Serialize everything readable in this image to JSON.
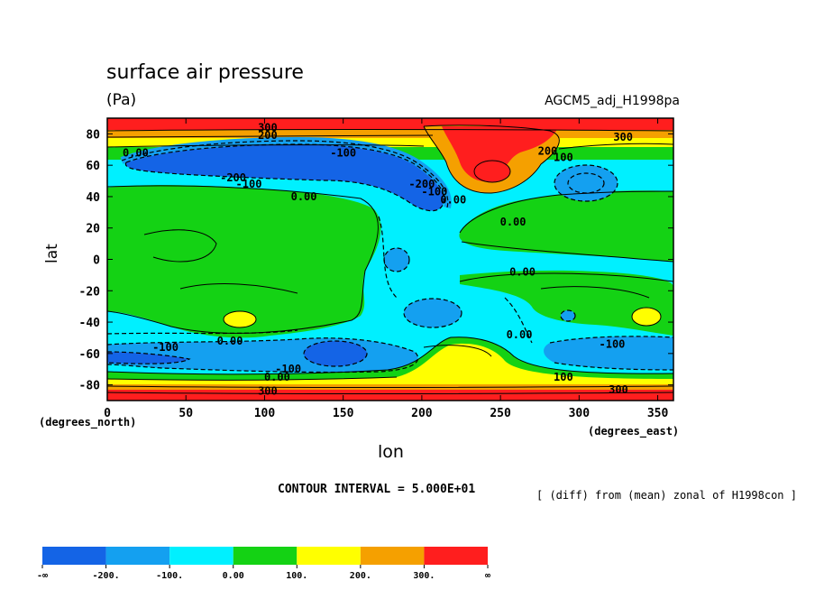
{
  "chart_data": {
    "type": "heatmap",
    "title": "surface air pressure",
    "units": "(Pa)",
    "dataset": "AGCM5_adj_H1998pa",
    "xlabel": "lon",
    "ylabel": "lat",
    "x_note": "(degrees_east)",
    "y_note": "(degrees_north)",
    "xlim": [
      0,
      360
    ],
    "ylim": [
      -90,
      90
    ],
    "x_ticks": [
      "0",
      "50",
      "100",
      "150",
      "200",
      "250",
      "300",
      "350"
    ],
    "x_tick_values": [
      0,
      50,
      100,
      150,
      200,
      250,
      300,
      350
    ],
    "y_ticks": [
      "80",
      "60",
      "40",
      "20",
      "0",
      "-20",
      "-40",
      "-60",
      "-80"
    ],
    "y_tick_values": [
      80,
      60,
      40,
      20,
      0,
      -20,
      -40,
      -60,
      -80
    ],
    "contour_interval": "CONTOUR INTERVAL = 5.000E+01",
    "note": "[ (diff) from (mean) zonal of H1998con ]",
    "colorbar": {
      "labels": [
        "-∞",
        "-200.",
        "-100.",
        "0.00",
        "100.",
        "200.",
        "300.",
        "∞"
      ],
      "colors": [
        "#1464e6",
        "#14a0f0",
        "#00f0ff",
        "#14d214",
        "#ffff00",
        "#f5a000",
        "#ff1e1e"
      ]
    },
    "contour_labels": [
      {
        "text": "0.00",
        "lon": 18,
        "lat": 68
      },
      {
        "text": "-100",
        "lon": 150,
        "lat": 68
      },
      {
        "text": "-200",
        "lon": 80,
        "lat": 52
      },
      {
        "text": "-100",
        "lon": 90,
        "lat": 48
      },
      {
        "text": "0.00",
        "lon": 125,
        "lat": 40
      },
      {
        "text": "-200",
        "lon": 200,
        "lat": 48
      },
      {
        "text": "-100",
        "lon": 208,
        "lat": 43
      },
      {
        "text": "0.00",
        "lon": 220,
        "lat": 38
      },
      {
        "text": "300",
        "lon": 102,
        "lat": 84
      },
      {
        "text": "200",
        "lon": 102,
        "lat": 79
      },
      {
        "text": "300",
        "lon": 328,
        "lat": 78
      },
      {
        "text": "200",
        "lon": 280,
        "lat": 69
      },
      {
        "text": "100",
        "lon": 290,
        "lat": 65
      },
      {
        "text": "0.00",
        "lon": 258,
        "lat": 24
      },
      {
        "text": "0.00",
        "lon": 264,
        "lat": -8
      },
      {
        "text": "0.00",
        "lon": 262,
        "lat": -48
      },
      {
        "text": "0.00",
        "lon": 78,
        "lat": -52
      },
      {
        "text": "-100",
        "lon": 37,
        "lat": -56
      },
      {
        "text": "-100",
        "lon": 321,
        "lat": -54
      },
      {
        "text": "-100",
        "lon": 115,
        "lat": -70
      },
      {
        "text": "0.00",
        "lon": 108,
        "lat": -75
      },
      {
        "text": "100",
        "lon": 290,
        "lat": -75
      },
      {
        "text": "300",
        "lon": 102,
        "lat": -84
      },
      {
        "text": "300",
        "lon": 325,
        "lat": -83
      }
    ]
  }
}
